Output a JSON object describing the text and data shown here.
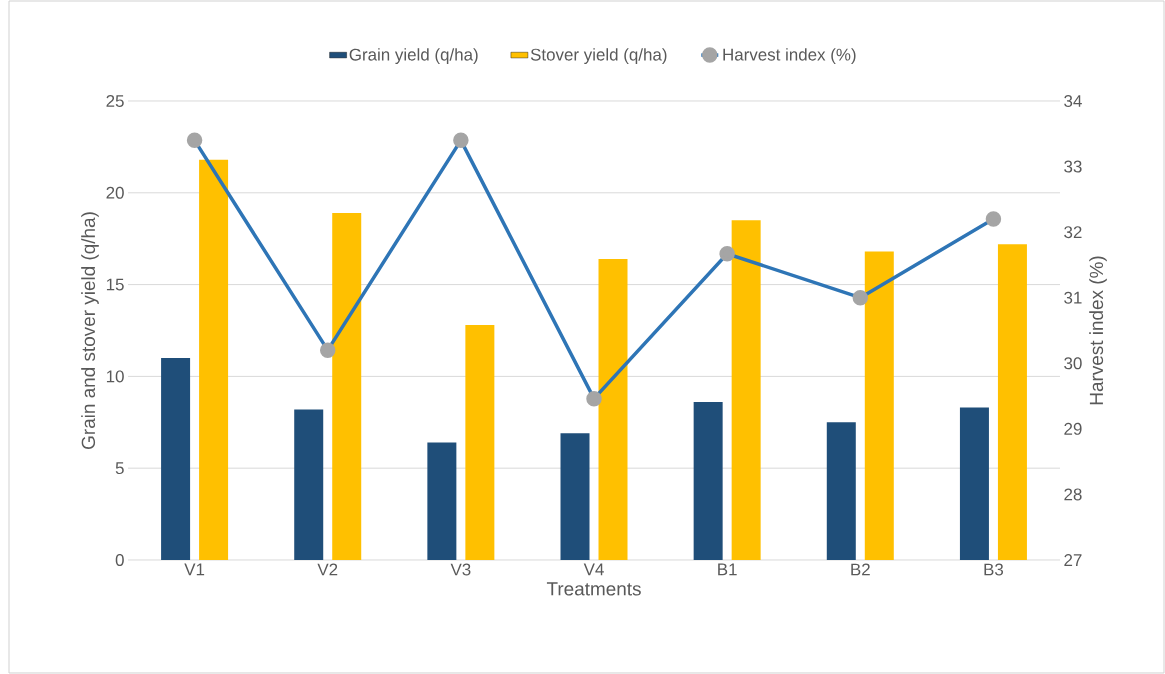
{
  "chart_data": {
    "type": "bar",
    "xlabel": "Treatments",
    "ylabel": "Grain and stover yield (q/ha)",
    "y2label": "Harvest index (%)",
    "categories": [
      "V1",
      "V2",
      "V3",
      "V4",
      "B1",
      "B2",
      "B3"
    ],
    "series": [
      {
        "name": "Grain yield (q/ha)",
        "color": "#1f4e79",
        "values": [
          11.0,
          8.2,
          6.4,
          6.9,
          8.6,
          7.5,
          8.3
        ]
      },
      {
        "name": "Stover yield (q/ha)",
        "color": "#ffc000",
        "values": [
          21.8,
          18.9,
          12.8,
          16.4,
          18.5,
          16.8,
          17.2
        ]
      },
      {
        "name": "Harvest index (%)",
        "type": "line",
        "axis": "y2",
        "color": "#2e75b6",
        "values": [
          33.4,
          30.2,
          33.4,
          29.46,
          31.67,
          31.0,
          32.2
        ]
      }
    ],
    "ylim": [
      0,
      25
    ],
    "yticks": [
      0,
      5,
      10,
      15,
      20,
      25
    ],
    "y2lim": [
      27,
      34
    ],
    "y2ticks": [
      27,
      28,
      29,
      30,
      31,
      32,
      33,
      34
    ],
    "grid": "y",
    "legend": "top",
    "marker": "circle"
  }
}
